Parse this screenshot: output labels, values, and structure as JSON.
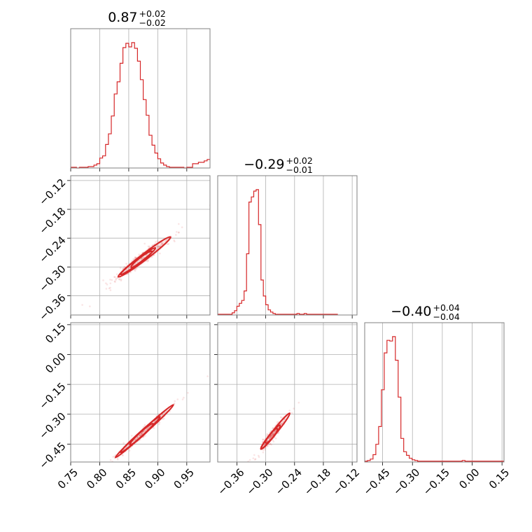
{
  "chart_data": {
    "type": "corner",
    "color": "#d62728",
    "grid": true,
    "parameters": [
      {
        "title": {
          "median": "0.87",
          "plus": "+0.02",
          "minus": "−0.02"
        },
        "range": [
          0.75,
          0.99
        ],
        "ticks": [
          0.75,
          0.8,
          0.85,
          0.9,
          0.95
        ],
        "tick_labels": [
          "0.75",
          "0.80",
          "0.85",
          "0.90",
          "0.95"
        ],
        "histogram": {
          "bin_start": 0.75,
          "bin_width": 0.005,
          "values": [
            1,
            1,
            0,
            1,
            1,
            1,
            2,
            2,
            4,
            6,
            14,
            17,
            33,
            48,
            73,
            104,
            121,
            147,
            169,
            175,
            170,
            176,
            168,
            150,
            124,
            96,
            74,
            46,
            32,
            21,
            13,
            7,
            4,
            2,
            1,
            1,
            1,
            1,
            1,
            0,
            1,
            1,
            6,
            6,
            8,
            8,
            10,
            12
          ]
        }
      },
      {
        "title": {
          "median": "−0.29",
          "plus": "+0.02",
          "minus": "−0.01"
        },
        "range": [
          -0.4,
          -0.11
        ],
        "ticks": [
          -0.36,
          -0.3,
          -0.24,
          -0.18,
          -0.12
        ],
        "tick_labels": [
          "−0.36",
          "−0.30",
          "−0.24",
          "−0.18",
          "−0.12"
        ],
        "histogram": {
          "bin_start": -0.4,
          "bin_width": 0.005,
          "values": [
            1,
            1,
            1,
            1,
            1,
            1,
            3,
            6,
            12,
            16,
            20,
            33,
            84,
            155,
            162,
            170,
            172,
            124,
            48,
            26,
            14,
            7,
            4,
            2,
            1,
            1,
            1,
            1,
            1,
            1,
            1,
            1,
            1,
            2,
            1,
            1,
            2,
            1,
            1,
            1,
            1,
            1,
            1,
            1,
            1,
            1,
            1,
            1,
            1,
            1
          ]
        }
      },
      {
        "title": {
          "median": "−0.40",
          "plus": "+0.04",
          "minus": "−0.04"
        },
        "range": [
          -0.54,
          0.16
        ],
        "ticks": [
          -0.45,
          -0.3,
          -0.15,
          0.0,
          0.15
        ],
        "tick_labels": [
          "−0.45",
          "−0.30",
          "−0.15",
          "0.00",
          "0.15"
        ],
        "histogram": {
          "bin_start": -0.54,
          "bin_width": 0.014,
          "values": [
            1,
            2,
            4,
            10,
            24,
            48,
            98,
            148,
            165,
            164,
            170,
            138,
            88,
            32,
            14,
            9,
            5,
            3,
            2,
            1,
            1,
            1,
            1,
            1,
            1,
            1,
            1,
            1,
            1,
            1,
            1,
            1,
            1,
            1,
            1,
            2,
            1,
            1,
            1,
            1,
            1,
            1,
            1,
            1,
            1,
            1,
            1,
            1,
            1,
            1
          ]
        }
      }
    ],
    "pairs": [
      {
        "x_param": 0,
        "y_param": 1,
        "trend": {
          "x0": 0.87,
          "y0": -0.285,
          "slope": 0.92
        },
        "spread": {
          "sx": 0.025,
          "sy_perp": 0.007
        },
        "contours": [
          {
            "cx": 0.877,
            "cy": -0.279,
            "half_len": 0.045,
            "half_width": 0.0065
          },
          {
            "cx": 0.866,
            "cy": -0.288,
            "half_len": 0.03,
            "half_width": 0.0045
          },
          {
            "cx": 0.872,
            "cy": -0.284,
            "half_len": 0.018,
            "half_width": 0.003
          }
        ]
      },
      {
        "x_param": 0,
        "y_param": 2,
        "trend": {
          "x0": 0.87,
          "y0": -0.405,
          "slope": 2.65
        },
        "spread": {
          "sx": 0.025,
          "sy_perp": 0.012
        },
        "contours": [
          {
            "cx": 0.877,
            "cy": -0.385,
            "half_len": 0.05,
            "half_width": 0.01
          },
          {
            "cx": 0.87,
            "cy": -0.402,
            "half_len": 0.034,
            "half_width": 0.007
          },
          {
            "cx": 0.872,
            "cy": -0.4,
            "half_len": 0.02,
            "half_width": 0.004
          }
        ]
      },
      {
        "x_param": 1,
        "y_param": 2,
        "trend": {
          "x0": -0.287,
          "y0": -0.405,
          "slope": 3.0
        },
        "spread": {
          "sx": 0.012,
          "sy_perp": 0.015
        },
        "contours": [
          {
            "cx": -0.28,
            "cy": -0.385,
            "half_len": 0.03,
            "half_width": 0.01
          },
          {
            "cx": -0.29,
            "cy": -0.415,
            "half_len": 0.02,
            "half_width": 0.007
          },
          {
            "cx": -0.288,
            "cy": -0.408,
            "half_len": 0.012,
            "half_width": 0.004
          }
        ]
      }
    ]
  }
}
